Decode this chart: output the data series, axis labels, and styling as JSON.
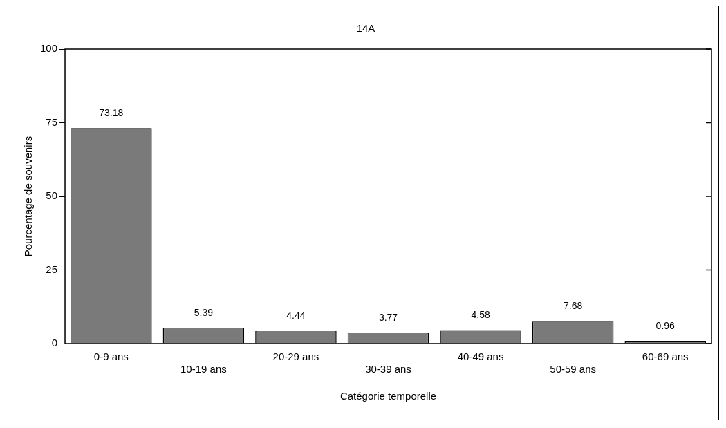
{
  "chart_data": {
    "type": "bar",
    "title": "14A",
    "xlabel": "Catégorie temporelle",
    "ylabel": "Pourcentage de souvenirs",
    "categories": [
      "0-9 ans",
      "10-19 ans",
      "20-29 ans",
      "30-39 ans",
      "40-49 ans",
      "50-59 ans",
      "60-69 ans"
    ],
    "values": [
      73.18,
      5.39,
      4.44,
      3.77,
      4.58,
      7.68,
      0.96
    ],
    "color": "#7a7a7a",
    "ylim": [
      0,
      100
    ],
    "yticks": [
      0,
      25,
      50,
      75,
      100
    ],
    "data_labels": true,
    "legend": false
  }
}
